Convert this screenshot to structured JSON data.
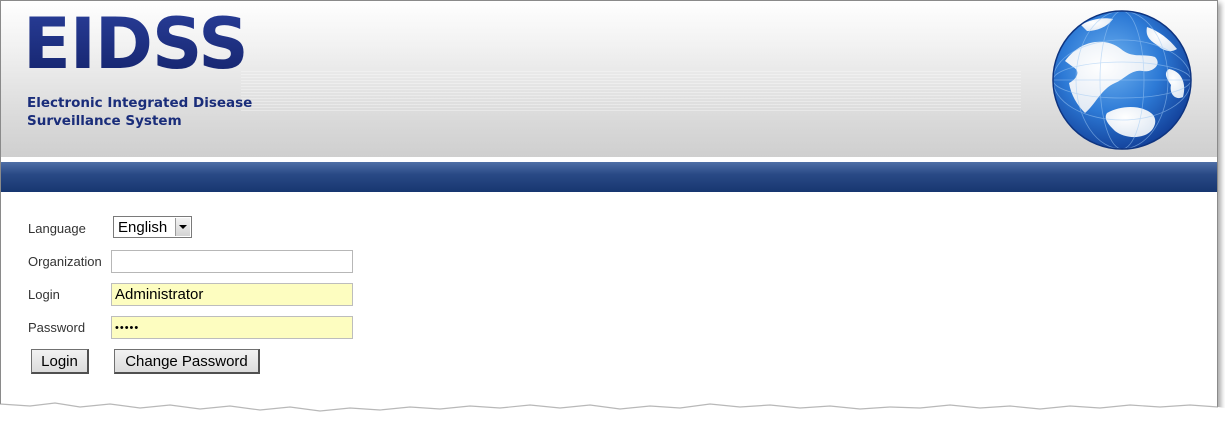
{
  "header": {
    "title": "EIDSS",
    "subtitle_line1": "Electronic Integrated Disease",
    "subtitle_line2": "Surveillance System",
    "logo_icon": "globe-icon",
    "brand_color": "#1a2d7a",
    "bar_color": "#2a4a86"
  },
  "form": {
    "language": {
      "label": "Language",
      "selected": "English"
    },
    "organization": {
      "label": "Organization",
      "value": ""
    },
    "login": {
      "label": "Login",
      "value": "Administrator"
    },
    "password": {
      "label": "Password",
      "value": "•••••"
    },
    "highlight_color": "#fdfdc0"
  },
  "buttons": {
    "login": "Login",
    "change_password": "Change Password"
  }
}
